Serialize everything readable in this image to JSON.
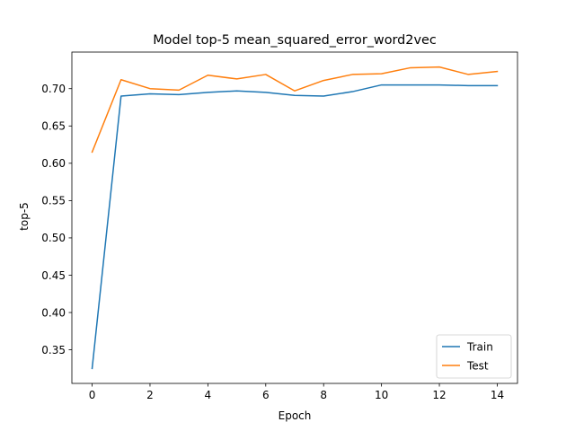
{
  "chart_data": {
    "type": "line",
    "title": "Model top-5 mean_squared_error_word2vec",
    "xlabel": "Epoch",
    "ylabel": "top-5",
    "x": [
      0,
      1,
      2,
      3,
      4,
      5,
      6,
      7,
      8,
      9,
      10,
      11,
      12,
      13,
      14
    ],
    "series": [
      {
        "name": "Train",
        "color": "#1f77b4",
        "values": [
          0.325,
          0.69,
          0.693,
          0.692,
          0.695,
          0.697,
          0.695,
          0.691,
          0.69,
          0.696,
          0.705,
          0.705,
          0.705,
          0.704,
          0.704
        ]
      },
      {
        "name": "Test",
        "color": "#ff7f0e",
        "values": [
          0.615,
          0.712,
          0.7,
          0.698,
          0.718,
          0.713,
          0.719,
          0.697,
          0.711,
          0.719,
          0.72,
          0.728,
          0.729,
          0.719,
          0.723
        ]
      }
    ],
    "xlim": [
      -0.7,
      14.7
    ],
    "ylim": [
      0.305,
      0.749
    ],
    "xticks": [
      0,
      2,
      4,
      6,
      8,
      10,
      12,
      14
    ],
    "yticks": [
      0.35,
      0.4,
      0.45,
      0.5,
      0.55,
      0.6,
      0.65,
      0.7
    ],
    "ytick_labels": [
      "0.35",
      "0.40",
      "0.45",
      "0.50",
      "0.55",
      "0.60",
      "0.65",
      "0.70"
    ],
    "grid": false,
    "legend_position": "lower-right"
  }
}
